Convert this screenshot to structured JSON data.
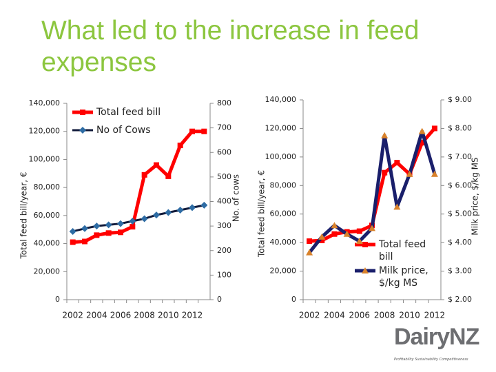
{
  "title": "What led to the increase in feed expenses",
  "logo": {
    "name": "DairyNZ",
    "tagline": "Profitability Sustainability Competitiveness"
  },
  "chart_data": [
    {
      "type": "line",
      "categories": [
        "2002",
        null,
        "2004",
        null,
        "2006",
        null,
        "2008",
        null,
        "2010",
        null,
        "2012",
        null
      ],
      "series": [
        {
          "name": "Total feed bill",
          "color": "#ff0000",
          "marker": "square",
          "marker_color": "#ff0000",
          "values": [
            41000,
            41500,
            46000,
            47500,
            48000,
            52000,
            89000,
            96000,
            88000,
            110000,
            120000,
            120000
          ]
        },
        {
          "name": "No of Cows",
          "color": "#111a3a",
          "marker": "diamond",
          "marker_color": "#2e6ca4",
          "axis": "y2",
          "values": [
            278,
            290,
            300,
            305,
            310,
            320,
            330,
            345,
            355,
            365,
            375,
            385
          ]
        }
      ],
      "ylabel": "Total feed bill/year, €",
      "y2label": "No. of cows",
      "ylim": [
        0,
        140000
      ],
      "yticks": [
        0,
        {
          "value": 20000,
          "label": "20,000"
        },
        {
          "value": 40000,
          "label": "40,000"
        },
        {
          "value": 60000,
          "label": "60,000"
        },
        {
          "value": 80000,
          "label": "80,000"
        },
        {
          "value": 100000,
          "label": "100,000"
        },
        {
          "value": 120000,
          "label": "120,000"
        },
        {
          "value": 140000,
          "label": "140,000"
        }
      ],
      "y2lim": [
        0,
        800
      ],
      "y2ticks": [
        0,
        100,
        200,
        300,
        400,
        500,
        600,
        700,
        800
      ],
      "legend": "upper-left"
    },
    {
      "type": "line",
      "categories": [
        "2002",
        null,
        "2004",
        null,
        "2006",
        null,
        "2008",
        null,
        "2010",
        null,
        "2012"
      ],
      "series": [
        {
          "name": "Total feed bill",
          "color": "#ff0000",
          "marker": "square",
          "marker_color": "#ff0000",
          "values": [
            41000,
            41500,
            46000,
            47500,
            48000,
            52000,
            89000,
            96000,
            88000,
            110000,
            120000
          ]
        },
        {
          "name": "Milk price, $/kg MS",
          "color": "#1a1f6b",
          "marker": "triangle",
          "marker_color": "#d9822b",
          "axis": "y2",
          "values": [
            3.65,
            4.2,
            4.6,
            4.3,
            4.05,
            4.5,
            7.75,
            5.25,
            6.4,
            7.9,
            6.4
          ]
        }
      ],
      "ylabel": "Total feed bill/year, €",
      "y2label": "Milk price, $/kg MS",
      "ylim": [
        0,
        140000
      ],
      "yticks": [
        0,
        {
          "value": 20000,
          "label": "20,000"
        },
        {
          "value": 40000,
          "label": "40,000"
        },
        {
          "value": 60000,
          "label": "60,000"
        },
        {
          "value": 80000,
          "label": "80,000"
        },
        {
          "value": 100000,
          "label": "100,000"
        },
        {
          "value": 120000,
          "label": "120,000"
        },
        {
          "value": 140000,
          "label": "140,000"
        }
      ],
      "y2lim": [
        2,
        9
      ],
      "y2ticks": [
        {
          "value": 2,
          "label": "$ 2.00"
        },
        {
          "value": 3,
          "label": "$ 3.00"
        },
        {
          "value": 4,
          "label": "$ 4.00"
        },
        {
          "value": 5,
          "label": "$ 5.00"
        },
        {
          "value": 6,
          "label": "$ 6.00"
        },
        {
          "value": 7,
          "label": "$ 7.00"
        },
        {
          "value": 8,
          "label": "$ 8.00"
        },
        {
          "value": 9,
          "label": "$ 9.00"
        }
      ],
      "legend": "lower-right"
    }
  ]
}
